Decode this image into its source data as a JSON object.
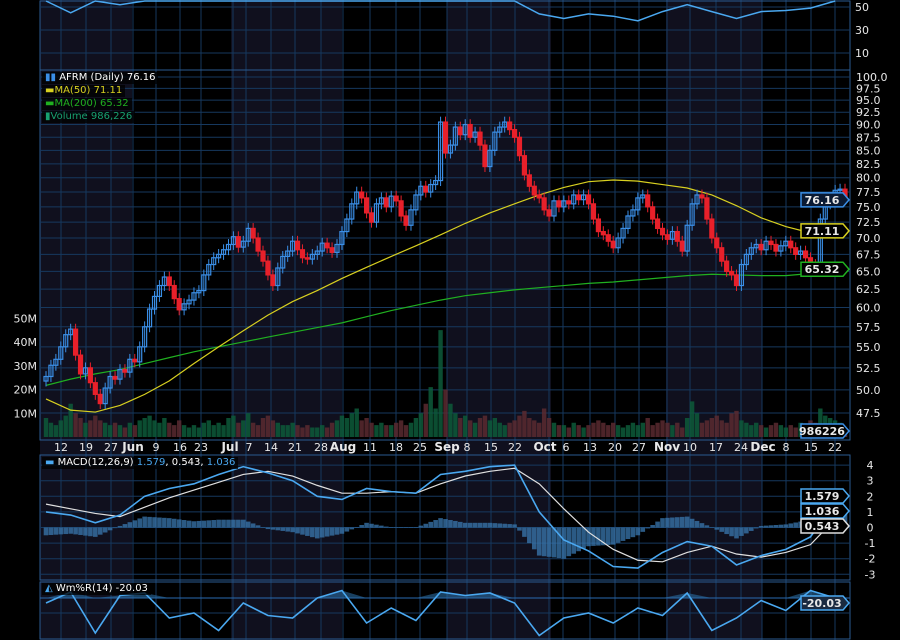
{
  "colors": {
    "up": "#3a8ee6",
    "down": "#e8202a",
    "ma50": "#d8d020",
    "ma200": "#20b020",
    "volume_up": "#0d5a3a",
    "volume_down": "#5a2a30",
    "macd": "#4aa8f0",
    "signal": "#e0e0e0",
    "grid": "#16385e",
    "band": "#10101e"
  },
  "legend": {
    "price": "AFRM (Daily) 76.16",
    "ma50": "MA(50) 71.11",
    "ma200": "MA(200) 65.32",
    "volume": "Volume 986,226",
    "macd_name": "MACD(12,26,9)",
    "macd_v1": "1.579",
    "macd_v2": "0.543",
    "macd_v3": "1.036",
    "willr": "Wm%R(14) -20.03"
  },
  "chart_data": [
    {
      "type": "candlestick",
      "scale": "log",
      "ylim": [
        47.5,
        100
      ],
      "y_ticks": [
        "100.0",
        "97.5",
        "95.0",
        "92.5",
        "90.0",
        "87.5",
        "85.0",
        "82.5",
        "80.0",
        "77.5",
        "75.0",
        "72.5",
        "70.0",
        "67.5",
        "65.0",
        "62.5",
        "60.0",
        "57.5",
        "55.0",
        "52.5",
        "50.0",
        "47.5"
      ],
      "x_ticks": [
        {
          "t": "12"
        },
        {
          "t": "19"
        },
        {
          "t": "27"
        },
        {
          "t": "Jun",
          "b": true
        },
        {
          "t": "9"
        },
        {
          "t": "16"
        },
        {
          "t": "23"
        },
        {
          "t": "Jul",
          "b": true
        },
        {
          "t": "7"
        },
        {
          "t": "14"
        },
        {
          "t": "21"
        },
        {
          "t": "28"
        },
        {
          "t": "Aug",
          "b": true
        },
        {
          "t": "11"
        },
        {
          "t": "18"
        },
        {
          "t": "25"
        },
        {
          "t": "Sep",
          "b": true
        },
        {
          "t": "8"
        },
        {
          "t": "15"
        },
        {
          "t": "22"
        },
        {
          "t": "Oct",
          "b": true
        },
        {
          "t": "6"
        },
        {
          "t": "13"
        },
        {
          "t": "20"
        },
        {
          "t": "27"
        },
        {
          "t": "Nov",
          "b": true
        },
        {
          "t": "10"
        },
        {
          "t": "17"
        },
        {
          "t": "24"
        },
        {
          "t": "Dec",
          "b": true
        },
        {
          "t": "8"
        },
        {
          "t": "15"
        },
        {
          "t": "22"
        }
      ],
      "close": [
        51.5,
        52.8,
        53.5,
        55.0,
        56.5,
        57.2,
        54.0,
        51.8,
        52.5,
        50.8,
        49.5,
        48.5,
        50.2,
        51.5,
        51.2,
        52.3,
        52.0,
        53.5,
        53.2,
        55.0,
        57.5,
        59.8,
        61.5,
        63.0,
        64.2,
        63.0,
        61.2,
        59.7,
        60.5,
        61.0,
        62.0,
        62.3,
        64.5,
        66.0,
        67.0,
        67.5,
        68.2,
        69.0,
        70.2,
        68.6,
        69.5,
        71.5,
        70.0,
        68.0,
        66.5,
        64.5,
        63.0,
        65.5,
        67.2,
        68.0,
        69.5,
        68.2,
        67.0,
        66.8,
        67.5,
        68.0,
        69.2,
        68.5,
        67.8,
        69.0,
        71.0,
        73.0,
        75.5,
        77.5,
        76.5,
        74.0,
        72.5,
        75.5,
        76.5,
        75.0,
        76.8,
        76.0,
        73.5,
        72.0,
        74.5,
        77.0,
        78.5,
        77.5,
        78.8,
        79.5,
        90.5,
        84.5,
        86.0,
        89.5,
        88.0,
        90.0,
        87.5,
        88.5,
        86.0,
        82.0,
        85.0,
        88.5,
        89.5,
        90.5,
        89.0,
        87.5,
        84.0,
        80.5,
        78.5,
        77.0,
        76.5,
        74.5,
        73.5,
        76.0,
        75.0,
        76.0,
        75.5,
        77.0,
        76.2,
        77.0,
        75.5,
        73.0,
        71.0,
        70.5,
        69.5,
        68.5,
        70.0,
        71.5,
        73.5,
        74.5,
        76.5,
        77.0,
        75.0,
        73.0,
        71.5,
        70.5,
        69.8,
        71.0,
        69.5,
        68.0,
        72.0,
        75.5,
        77.0,
        76.5,
        73.0,
        70.0,
        68.5,
        66.5,
        65.0,
        64.5,
        63.0,
        66.0,
        67.5,
        68.5,
        69.0,
        68.2,
        69.5,
        69.0,
        68.0,
        68.8,
        69.5,
        68.5,
        67.5,
        68.0,
        67.0,
        66.0,
        65.5,
        73.0,
        75.5,
        76.5,
        77.8,
        78.0,
        76.16
      ],
      "ma50_weekly": [
        49.0,
        47.8,
        47.6,
        48.3,
        49.5,
        51.0,
        53.0,
        55.0,
        57.0,
        59.0,
        60.8,
        62.3,
        64.0,
        65.6,
        67.2,
        68.8,
        70.5,
        72.3,
        74.0,
        75.5,
        77.0,
        78.3,
        79.3,
        79.6,
        79.4,
        78.8,
        78.2,
        77.0,
        75.2,
        73.2,
        71.8,
        70.8,
        71.11
      ],
      "ma200_weekly": [
        50.5,
        51.2,
        51.8,
        52.3,
        53.0,
        53.7,
        54.4,
        55.0,
        55.6,
        56.2,
        56.8,
        57.4,
        58.0,
        58.8,
        59.6,
        60.3,
        61.0,
        61.6,
        62.0,
        62.4,
        62.7,
        63.0,
        63.3,
        63.5,
        63.8,
        64.1,
        64.4,
        64.6,
        64.5,
        64.4,
        64.4,
        64.7,
        65.32
      ],
      "last_tags": {
        "price": "76.16",
        "ma50": "71.11",
        "ma200": "65.32"
      }
    },
    {
      "type": "bar",
      "name": "Volume",
      "unit": "M",
      "y_ticks": [
        "50M",
        "40M",
        "30M",
        "20M",
        "10M"
      ],
      "values": [
        8,
        6,
        5,
        7,
        9,
        14,
        10,
        8,
        6,
        7,
        9,
        7,
        6,
        5,
        6,
        5,
        4,
        6,
        5,
        7,
        8,
        9,
        7,
        6,
        8,
        6,
        5,
        7,
        5,
        4,
        5,
        4,
        6,
        7,
        5,
        6,
        5,
        8,
        9,
        6,
        7,
        10,
        6,
        5,
        8,
        9,
        7,
        6,
        5,
        5,
        6,
        5,
        4,
        5,
        4,
        4,
        5,
        4,
        6,
        7,
        9,
        8,
        10,
        12,
        7,
        8,
        6,
        5,
        6,
        5,
        5,
        6,
        7,
        5,
        6,
        8,
        10,
        14,
        21,
        12,
        45,
        20,
        14,
        10,
        8,
        9,
        7,
        6,
        8,
        9,
        7,
        8,
        6,
        5,
        6,
        7,
        9,
        11,
        8,
        7,
        6,
        12,
        8,
        6,
        5,
        5,
        4,
        6,
        5,
        4,
        5,
        6,
        7,
        6,
        5,
        6,
        5,
        4,
        5,
        6,
        5,
        6,
        8,
        5,
        6,
        7,
        6,
        5,
        6,
        4,
        8,
        15,
        10,
        6,
        7,
        8,
        9,
        7,
        6,
        10,
        11,
        7,
        6,
        5,
        6,
        5,
        4,
        5,
        6,
        5,
        4,
        5,
        4,
        6,
        5,
        7,
        6,
        12,
        9,
        8,
        7,
        6,
        0.986
      ],
      "last_tag": "986226"
    },
    {
      "type": "line",
      "name": "MACD(12,26,9)",
      "ylim": [
        -3.5,
        4.5
      ],
      "y_ticks": [
        "4",
        "3",
        "2",
        "1",
        "0",
        "-1",
        "-2",
        "-3"
      ],
      "macd_weekly": [
        1.0,
        0.8,
        0.3,
        0.8,
        2.0,
        2.5,
        2.8,
        3.4,
        3.9,
        3.5,
        3.0,
        2.0,
        1.8,
        2.5,
        2.3,
        2.2,
        3.4,
        3.6,
        3.9,
        4.0,
        1.0,
        -0.8,
        -1.5,
        -2.5,
        -2.6,
        -1.6,
        -0.9,
        -1.2,
        -2.4,
        -1.8,
        -1.4,
        -0.6,
        1.579
      ],
      "signal_weekly": [
        1.5,
        1.2,
        0.9,
        0.7,
        1.3,
        1.9,
        2.4,
        2.9,
        3.4,
        3.6,
        3.3,
        2.7,
        2.2,
        2.2,
        2.3,
        2.2,
        2.8,
        3.3,
        3.6,
        3.8,
        2.8,
        1.2,
        -0.3,
        -1.4,
        -2.1,
        -2.2,
        -1.6,
        -1.2,
        -1.7,
        -1.9,
        -1.6,
        -1.1,
        0.543
      ],
      "last_tags": {
        "macd": "1.579",
        "hist": "1.036",
        "signal": "0.543"
      }
    },
    {
      "type": "area",
      "name": "Wm%R(14)",
      "reference": -20,
      "values": [
        -30,
        -8,
        -90,
        -15,
        -10,
        -60,
        -50,
        -85,
        -30,
        -55,
        -60,
        -20,
        -5,
        -70,
        -40,
        -65,
        -8,
        -15,
        -10,
        -30,
        -95,
        -60,
        -50,
        -70,
        -40,
        -55,
        -10,
        -85,
        -60,
        -25,
        -45,
        -5,
        -20.03
      ],
      "last_tag": "-20.03"
    },
    {
      "type": "line",
      "y_ticks": [
        "50",
        "30",
        "10"
      ],
      "values": [
        58,
        45,
        56,
        52,
        60,
        65,
        66,
        68,
        62,
        60,
        62,
        60,
        66,
        65,
        62,
        68,
        70,
        68,
        62,
        66,
        44,
        40,
        44,
        42,
        38,
        46,
        52,
        46,
        40,
        46,
        47,
        49,
        58
      ]
    }
  ]
}
